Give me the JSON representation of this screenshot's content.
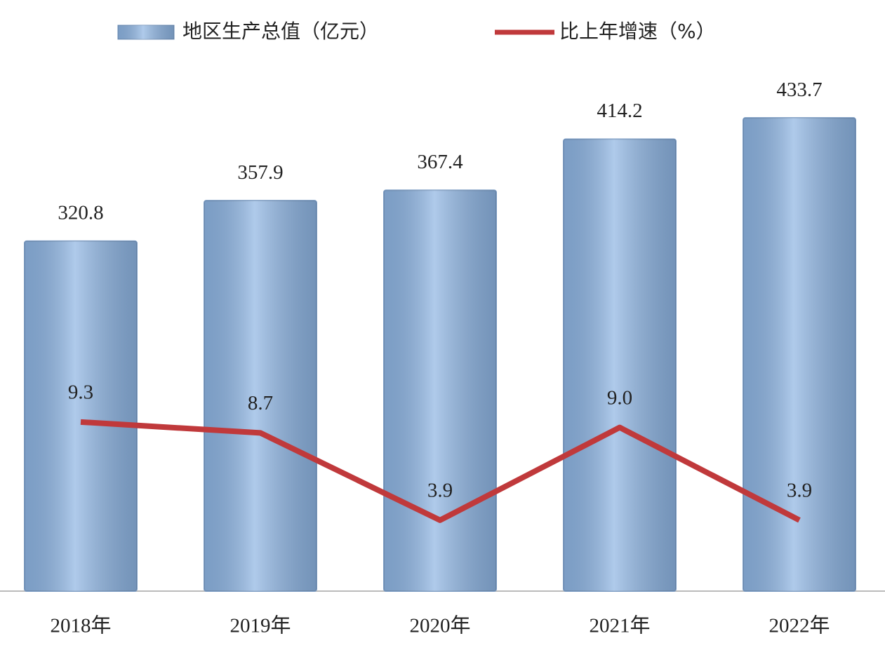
{
  "chart_data": {
    "type": "bar",
    "categories": [
      "2018年",
      "2019年",
      "2020年",
      "2021年",
      "2022年"
    ],
    "series": [
      {
        "name": "地区生产总值（亿元）",
        "type": "bar",
        "color": "#8db4e2",
        "values": [
          320.8,
          357.9,
          367.4,
          414.2,
          433.7
        ]
      },
      {
        "name": "比上年增速（%）",
        "type": "line",
        "axis": "y2",
        "color": "#c0393b",
        "values": [
          9.3,
          8.7,
          3.9,
          9.0,
          3.9
        ],
        "value_labels": [
          "9.3",
          "8.7",
          "3.9",
          "9.0",
          "3.9"
        ]
      }
    ],
    "ylim": [
      0,
      500
    ],
    "y2lim": [
      0,
      30
    ],
    "legend": "top"
  }
}
